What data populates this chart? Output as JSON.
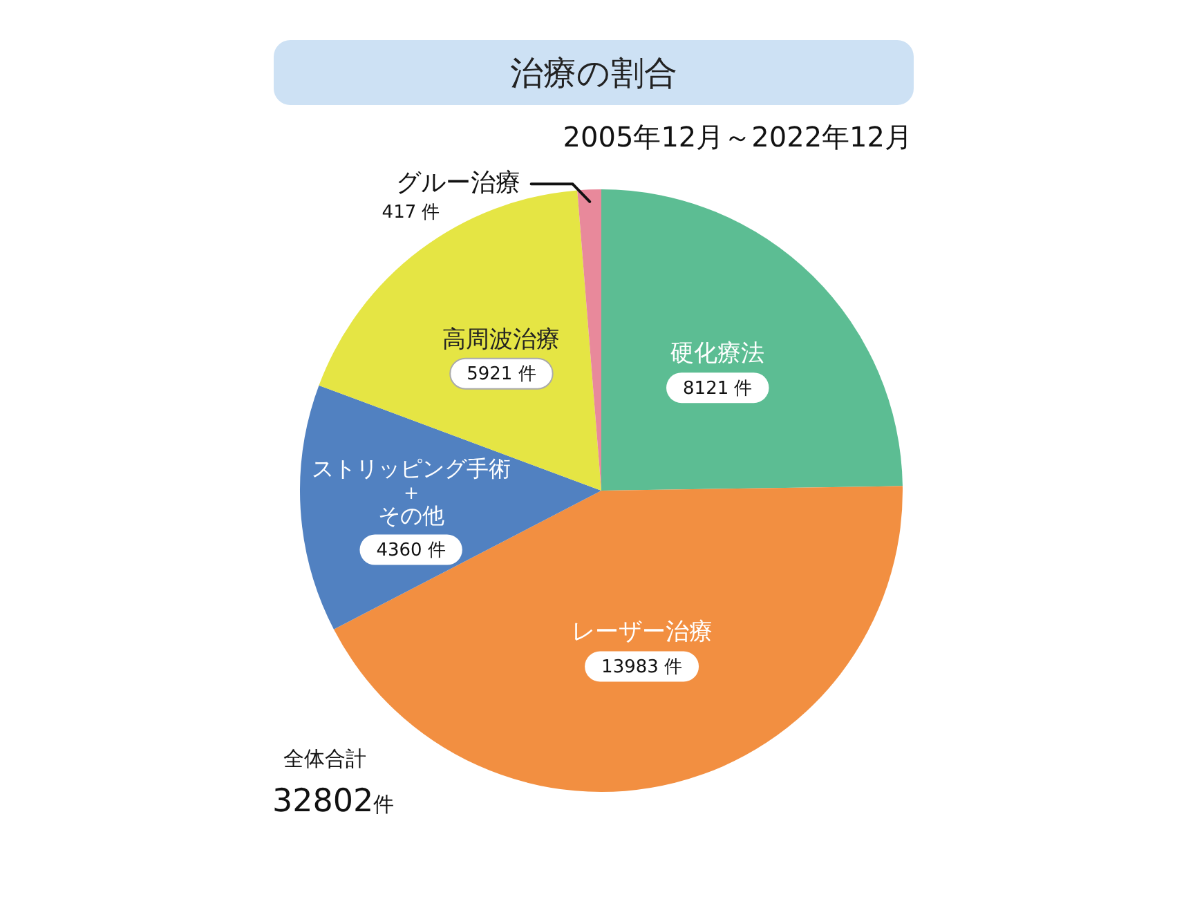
{
  "chart_data": {
    "type": "pie",
    "title": "治療の割合",
    "subtitle": "2005年12月～2022年12月",
    "categories": [
      "硬化療法",
      "レーザー治療",
      "ストリッピング手術＋その他",
      "高周波治療",
      "グルー治療"
    ],
    "values": [
      8121,
      13983,
      4360,
      5921,
      417
    ],
    "colors": [
      "#5cbd93",
      "#f28f41",
      "#5181c1",
      "#e5e544",
      "#e8899b"
    ],
    "value_labels": [
      "8121 件",
      "13983 件",
      "4360 件",
      "5921 件",
      "417 件"
    ],
    "annotations": [
      "全体合計",
      "32802件"
    ]
  }
}
